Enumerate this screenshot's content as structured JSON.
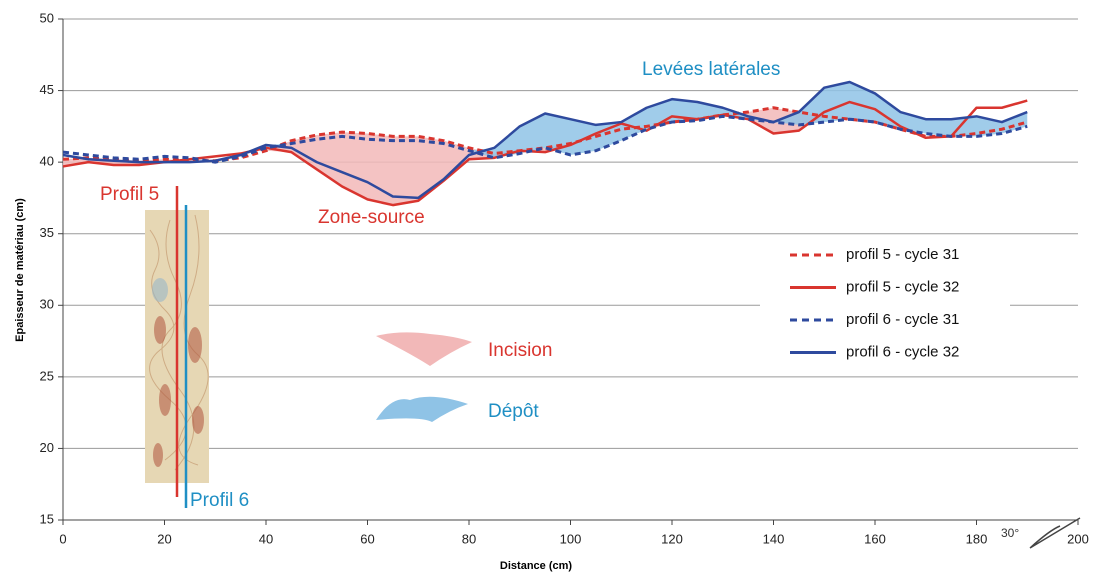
{
  "chart_data": {
    "type": "line",
    "x_label": "Distance (cm)",
    "y_label": "Epaisseur de matériau (cm)",
    "x": [
      0,
      5,
      10,
      15,
      20,
      25,
      30,
      35,
      40,
      45,
      50,
      55,
      60,
      65,
      70,
      75,
      80,
      85,
      90,
      95,
      100,
      105,
      110,
      115,
      120,
      125,
      130,
      135,
      140,
      145,
      150,
      155,
      160,
      165,
      170,
      175,
      180,
      185,
      190
    ],
    "series": [
      {
        "name": "profil 5 - cycle 31",
        "color": "#d9352f",
        "dashed": true,
        "values": [
          40.2,
          40.3,
          40.2,
          40.1,
          40.2,
          40.1,
          40.1,
          40.3,
          40.8,
          41.5,
          41.9,
          42.1,
          42.0,
          41.8,
          41.8,
          41.5,
          41.0,
          40.6,
          40.8,
          41.0,
          41.3,
          41.8,
          42.3,
          42.5,
          42.8,
          43.0,
          43.3,
          43.5,
          43.8,
          43.5,
          43.2,
          43.0,
          42.8,
          42.3,
          41.8,
          41.8,
          42.0,
          42.3,
          42.8
        ]
      },
      {
        "name": "profil 5 - cycle 32",
        "color": "#d9352f",
        "dashed": false,
        "values": [
          39.7,
          40.0,
          39.8,
          39.8,
          40.0,
          40.2,
          40.4,
          40.6,
          41.0,
          40.7,
          39.5,
          38.3,
          37.4,
          37.0,
          37.3,
          38.7,
          40.2,
          40.3,
          40.8,
          40.7,
          41.2,
          42.0,
          42.7,
          42.2,
          43.2,
          43.0,
          43.3,
          43.0,
          42.0,
          42.2,
          43.5,
          44.2,
          43.7,
          42.5,
          41.7,
          41.8,
          43.8,
          43.8,
          44.3
        ]
      },
      {
        "name": "profil 6 - cycle 31",
        "color": "#2e4a9e",
        "dashed": true,
        "values": [
          40.7,
          40.5,
          40.3,
          40.2,
          40.4,
          40.3,
          40.0,
          40.4,
          41.0,
          41.3,
          41.6,
          41.8,
          41.6,
          41.5,
          41.5,
          41.3,
          40.8,
          40.3,
          40.6,
          41.0,
          40.5,
          40.8,
          41.5,
          42.3,
          42.8,
          42.9,
          43.2,
          43.0,
          42.8,
          42.6,
          42.8,
          43.0,
          42.8,
          42.3,
          42.0,
          41.8,
          41.8,
          42.0,
          42.5
        ]
      },
      {
        "name": "profil 6 - cycle 32",
        "color": "#2e4a9e",
        "dashed": false,
        "values": [
          40.5,
          40.2,
          40.1,
          40.0,
          40.0,
          40.0,
          40.1,
          40.5,
          41.2,
          41.0,
          40.0,
          39.3,
          38.6,
          37.6,
          37.5,
          38.8,
          40.5,
          41.0,
          42.5,
          43.4,
          43.0,
          42.6,
          42.8,
          43.8,
          44.4,
          44.2,
          43.8,
          43.2,
          42.8,
          43.5,
          45.2,
          45.6,
          44.8,
          43.5,
          43.0,
          43.0,
          43.2,
          42.8,
          43.5
        ]
      }
    ],
    "incision_color": "#f2b8b8",
    "deposit_color": "#8fc3e6",
    "xlim": [
      0,
      200
    ],
    "xticks": [
      0,
      20,
      40,
      60,
      80,
      100,
      120,
      140,
      160,
      180,
      200
    ],
    "ylim": [
      15,
      50
    ],
    "yticks": [
      15,
      20,
      25,
      30,
      35,
      40,
      45,
      50
    ],
    "grid": true,
    "legend": "right",
    "annotations": {
      "levees": "Levées latérales",
      "zone_source": "Zone-source",
      "profil5": "Profil 5",
      "profil6": "Profil 6",
      "incision": "Incision",
      "depot": "Dépôt",
      "angle": "30°"
    }
  }
}
